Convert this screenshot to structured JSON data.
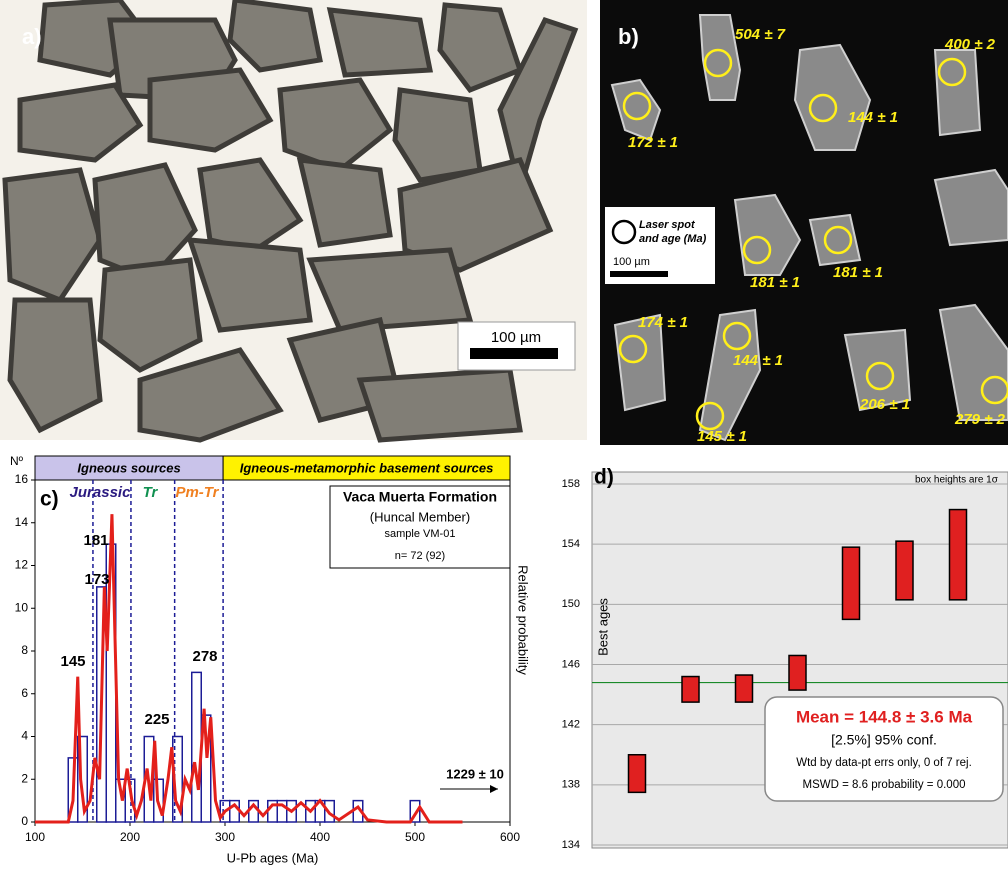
{
  "panels": {
    "a": {
      "label": "a)",
      "scale": "100 µm"
    },
    "b": {
      "label": "b)",
      "ages": [
        "504 ± 7",
        "400 ± 2",
        "144 ± 1",
        "172 ± 1",
        "181 ± 1",
        "181 ± 1",
        "174 ± 1",
        "144 ± 1",
        "145 ± 1",
        "206 ± 1",
        "279 ± 2"
      ],
      "legend": [
        "Laser spot",
        "and age (Ma)"
      ],
      "scale": "100 µm"
    }
  },
  "chart_data": [
    {
      "type": "histogram",
      "label": "c)",
      "ylabel": "Nº",
      "xlabel": "U-Pb ages (Ma)",
      "y2label": "Relative probability",
      "bins": [
        135,
        145,
        155,
        165,
        175,
        185,
        195,
        205,
        215,
        225,
        235,
        245,
        255,
        265,
        275,
        285,
        295,
        305,
        315,
        325,
        335,
        345,
        355,
        365,
        375,
        385,
        395,
        405,
        415,
        425,
        435,
        445,
        455,
        465,
        475,
        485,
        495,
        505,
        515
      ],
      "counts": [
        3,
        4,
        0,
        11,
        13,
        2,
        2,
        0,
        4,
        2,
        0,
        4,
        0,
        7,
        5,
        0,
        1,
        1,
        0,
        1,
        0,
        1,
        1,
        1,
        0,
        1,
        1,
        1,
        0,
        0,
        1,
        0,
        0,
        0,
        0,
        0,
        1,
        0
      ],
      "color": "#1c1c96",
      "curve": {
        "color": "#e3201b",
        "x": [
          100,
          135,
          140,
          145,
          148,
          152,
          158,
          163,
          168,
          173,
          176,
          181,
          184,
          188,
          192,
          197,
          202,
          207,
          212,
          218,
          222,
          226,
          229,
          234,
          240,
          244,
          248,
          253,
          258,
          263,
          268,
          272,
          278,
          281,
          285,
          290,
          295,
          300,
          310,
          320,
          330,
          340,
          350,
          360,
          370,
          380,
          390,
          400,
          410,
          420,
          440,
          450,
          470,
          495,
          505,
          515,
          550
        ],
        "values": [
          0,
          0,
          1,
          6.8,
          2,
          0.5,
          1,
          3,
          2,
          11,
          8,
          14.4,
          9,
          2,
          1,
          2.5,
          1,
          0.3,
          1,
          2.5,
          1,
          3.8,
          1,
          0.3,
          2,
          3.5,
          1,
          0.5,
          2,
          1.5,
          2.8,
          1.5,
          5.3,
          3,
          4.9,
          1,
          0.2,
          0.5,
          0.8,
          0.3,
          0.8,
          0.3,
          0.8,
          0.8,
          0.5,
          0.9,
          0.5,
          1,
          0.4,
          0.1,
          0.7,
          0.1,
          0,
          0,
          0.7,
          0,
          0
        ]
      },
      "xlim": [
        100,
        600
      ],
      "xticks": [
        100,
        200,
        300,
        400,
        500,
        600
      ],
      "ylim": [
        0,
        16
      ],
      "yticks": [
        0,
        2,
        4,
        6,
        8,
        10,
        12,
        14,
        16
      ],
      "boundaries": [
        161,
        201,
        247,
        298
      ],
      "regions": [
        {
          "name": "Igneous sources",
          "color": "#c9c3ea"
        },
        {
          "name": "Igneous-metamorphic basement sources",
          "color": "#fff200"
        }
      ],
      "periods": [
        {
          "name": "Jurassic",
          "color": "#2a1a80"
        },
        {
          "name": "Tr",
          "color": "#109050"
        },
        {
          "name": "Pm-Tr",
          "color": "#f08020"
        }
      ],
      "legend_box": [
        "Vaca Muerta Formation",
        "(Huncal Member)",
        "sample VM-01",
        "n= 72 (92)"
      ],
      "peaks": [
        145,
        173,
        181,
        225,
        278
      ],
      "outlier_label": "1229 ± 10"
    },
    {
      "type": "boxes",
      "label": "d)",
      "note": "box heights are 1σ",
      "ylabel": "Best ages",
      "values": [
        138.75,
        144.35,
        144.4,
        145.45,
        151.4,
        152.25,
        153.3
      ],
      "errors": [
        1.25,
        0.85,
        0.9,
        1.15,
        2.4,
        1.95,
        3.0
      ],
      "color": "#e02020",
      "mean": 144.8,
      "mean_color": "#1a8a2a",
      "ylim": [
        134,
        158
      ],
      "yticks": [
        134,
        138,
        142,
        146,
        150,
        154,
        158
      ],
      "grid": true,
      "mean_text": [
        "Mean = 144.8 ± 3.6 Ma",
        "[2.5%]  95% conf.",
        "Wtd by data-pt errs only, 0 of 7 rej.",
        "MSWD = 8.6 probability = 0.000"
      ]
    }
  ]
}
